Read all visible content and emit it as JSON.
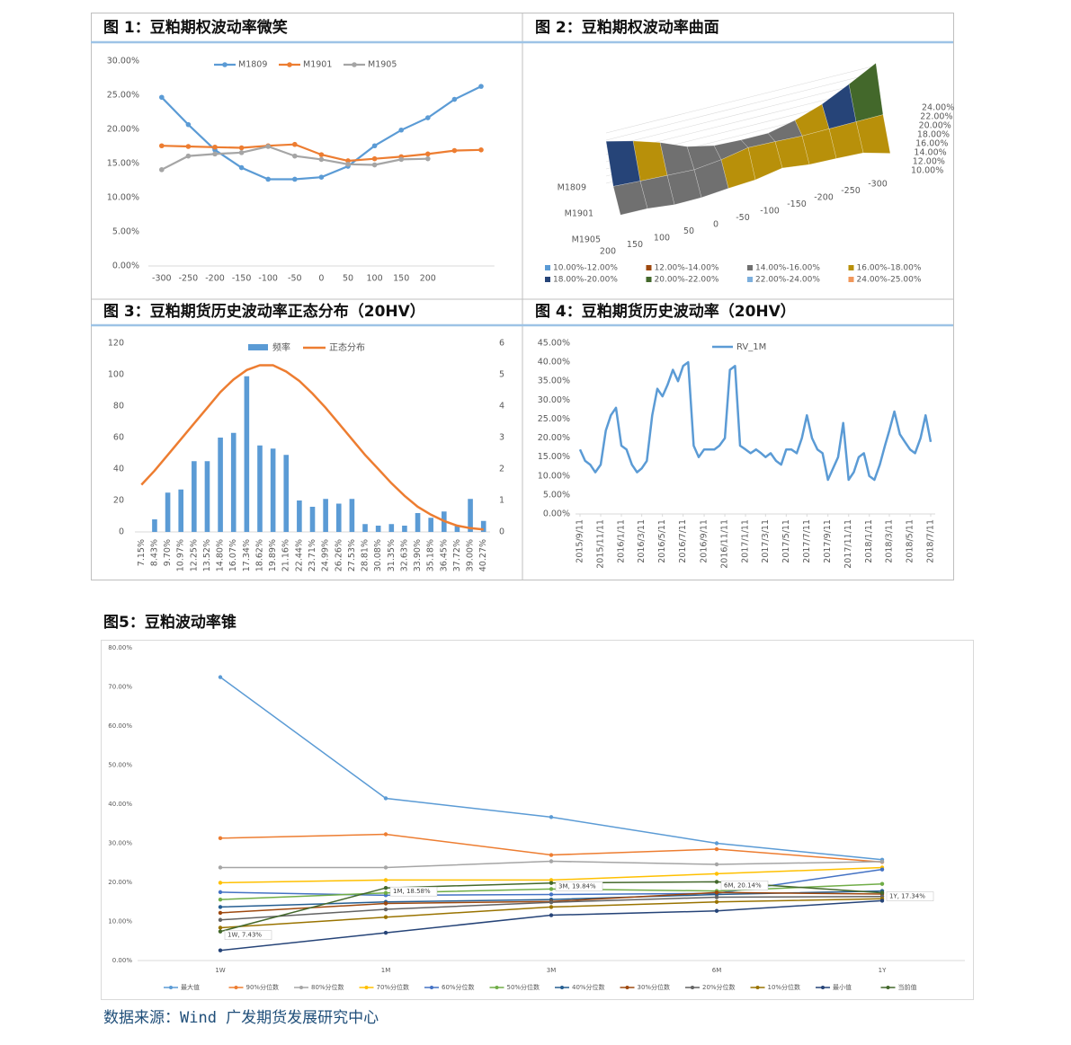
{
  "chart_data": [
    {
      "type": "line",
      "title": "图 1：豆粕期权波动率微笑",
      "categories": [
        -300,
        -250,
        -200,
        -150,
        -100,
        -50,
        0,
        50,
        100,
        150,
        200,
        null,
        null
      ],
      "series": [
        {
          "name": "M1809",
          "color": "#5b9bd5",
          "values": [
            24.7,
            20.7,
            17.0,
            14.4,
            12.7,
            12.7,
            13.0,
            14.6,
            17.6,
            19.9,
            21.7,
            24.4,
            26.3
          ]
        },
        {
          "name": "M1901",
          "color": "#ed7d31",
          "values": [
            17.6,
            17.5,
            17.4,
            17.3,
            17.6,
            17.8,
            16.3,
            15.4,
            15.7,
            16.0,
            16.4,
            16.9,
            17.0
          ]
        },
        {
          "name": "M1905",
          "color": "#a5a5a5",
          "values": [
            14.1,
            16.1,
            16.4,
            16.6,
            17.5,
            16.1,
            15.6,
            14.9,
            14.8,
            15.6,
            15.7,
            null,
            null
          ]
        }
      ],
      "ylim": [
        0,
        30
      ],
      "yticks": [
        {
          "value": 0,
          "label": "0.00%"
        },
        {
          "value": 5,
          "label": "5.00%"
        },
        {
          "value": 10,
          "label": "10.00%"
        },
        {
          "value": 15,
          "label": "15.00%"
        },
        {
          "value": 20,
          "label": "20.00%"
        },
        {
          "value": 25,
          "label": "25.00%"
        },
        {
          "value": 30,
          "label": "30.00%"
        }
      ],
      "legend": "top"
    },
    {
      "type": "surface",
      "title": "图 2：豆粕期权波动率曲面",
      "categories": [
        -300,
        -250,
        -200,
        -150,
        -100,
        -50,
        0,
        50,
        100,
        150,
        200
      ],
      "series": [
        {
          "name": "M1809",
          "values": [
            24.7,
            20.7,
            17.0,
            14.4,
            12.7,
            12.7,
            13.0,
            14.6,
            17.6,
            19.9,
            21.7
          ]
        },
        {
          "name": "M1901",
          "values": [
            17.6,
            17.5,
            17.4,
            17.3,
            17.6,
            17.8,
            16.3,
            15.4,
            15.7,
            16.0,
            16.4
          ]
        },
        {
          "name": "M1905",
          "values": [
            14.1,
            16.1,
            16.4,
            16.6,
            17.5,
            16.1,
            15.6,
            14.9,
            14.8,
            15.6,
            15.7
          ]
        }
      ],
      "zlim": [
        10,
        25
      ],
      "zticks": [
        {
          "value": 10,
          "label": "10.00%"
        },
        {
          "value": 12,
          "label": "12.00%"
        },
        {
          "value": 14,
          "label": "14.00%"
        },
        {
          "value": 16,
          "label": "16.00%"
        },
        {
          "value": 18,
          "label": "18.00%"
        },
        {
          "value": 20,
          "label": "20.00%"
        },
        {
          "value": 22,
          "label": "22.00%"
        },
        {
          "value": 24,
          "label": "24.00%"
        }
      ],
      "bands": [
        {
          "name": "10.00%-12.00%",
          "color": "#5b9bd5"
        },
        {
          "name": "12.00%-14.00%",
          "color": "#9e480e"
        },
        {
          "name": "14.00%-16.00%",
          "color": "#707070"
        },
        {
          "name": "16.00%-18.00%",
          "color": "#b8900a"
        },
        {
          "name": "18.00%-20.00%",
          "color": "#264478"
        },
        {
          "name": "20.00%-22.00%",
          "color": "#43682b"
        },
        {
          "name": "22.00%-24.00%",
          "color": "#7cafdd"
        },
        {
          "name": "24.00%-25.00%",
          "color": "#f1975a"
        }
      ],
      "legend": "bottom"
    },
    {
      "type": "bar_line",
      "title": "图 3：豆粕期货历史波动率正态分布（20HV）",
      "categories": [
        "7.15%",
        "8.43%",
        "9.70%",
        "10.97%",
        "12.25%",
        "13.52%",
        "14.80%",
        "16.07%",
        "17.34%",
        "18.62%",
        "19.89%",
        "21.16%",
        "22.44%",
        "23.71%",
        "24.99%",
        "26.26%",
        "27.53%",
        "28.81%",
        "30.08%",
        "31.35%",
        "32.63%",
        "33.90%",
        "35.18%",
        "36.45%",
        "37.72%",
        "39.00%",
        "40.27%"
      ],
      "series": [
        {
          "name": "频率",
          "type": "bar",
          "color": "#5b9bd5",
          "values": [
            0,
            8,
            25,
            27,
            45,
            45,
            60,
            63,
            99,
            55,
            53,
            49,
            20,
            16,
            21,
            18,
            21,
            5,
            4,
            5,
            4,
            12,
            9,
            13,
            4,
            21,
            7
          ]
        },
        {
          "name": "正态分布",
          "type": "line",
          "axis": "y2",
          "color": "#ed7d31",
          "values": [
            1.5,
            1.95,
            2.45,
            2.95,
            3.45,
            3.95,
            4.45,
            4.85,
            5.15,
            5.3,
            5.3,
            5.1,
            4.8,
            4.4,
            3.95,
            3.45,
            2.95,
            2.45,
            2.0,
            1.55,
            1.15,
            0.8,
            0.55,
            0.35,
            0.2,
            0.12,
            0.08
          ]
        }
      ],
      "ylim": [
        0,
        120
      ],
      "yticks": [
        0,
        20,
        40,
        60,
        80,
        100,
        120
      ],
      "y2lim": [
        0,
        6
      ],
      "y2ticks": [
        0,
        1,
        2,
        3,
        4,
        5,
        6
      ],
      "legend": "top"
    },
    {
      "type": "timeseries",
      "title": "图 4：豆粕期货历史波动率（20HV）",
      "x": [
        "2015/9/11",
        "2015/9/26",
        "2015/10/11",
        "2015/10/26",
        "2015/11/11",
        "2015/11/26",
        "2015/12/11",
        "2015/12/26",
        "2016/1/11",
        "2016/1/26",
        "2016/2/11",
        "2016/2/26",
        "2016/3/11",
        "2016/3/26",
        "2016/4/11",
        "2016/4/26",
        "2016/5/11",
        "2016/5/26",
        "2016/6/11",
        "2016/6/26",
        "2016/7/11",
        "2016/7/26",
        "2016/8/11",
        "2016/8/26",
        "2016/9/11",
        "2016/9/26",
        "2016/10/11",
        "2016/10/26",
        "2016/11/11",
        "2016/11/26",
        "2016/12/11",
        "2016/12/26",
        "2017/1/11",
        "2017/1/26",
        "2017/2/11",
        "2017/2/26",
        "2017/3/11",
        "2017/3/26",
        "2017/4/11",
        "2017/4/26",
        "2017/5/11",
        "2017/5/26",
        "2017/6/11",
        "2017/6/26",
        "2017/7/11",
        "2017/7/26",
        "2017/8/11",
        "2017/8/26",
        "2017/9/11",
        "2017/9/26",
        "2017/10/11",
        "2017/10/26",
        "2017/11/11",
        "2017/11/26",
        "2017/12/11",
        "2017/12/26",
        "2018/1/11",
        "2018/1/26",
        "2018/2/11",
        "2018/2/26",
        "2018/3/11",
        "2018/3/26",
        "2018/4/11",
        "2018/4/26",
        "2018/5/11",
        "2018/5/26",
        "2018/6/11",
        "2018/6/26",
        "2018/7/11"
      ],
      "series": [
        {
          "name": "RV_1M",
          "color": "#5b9bd5",
          "values": [
            17,
            14,
            13,
            11,
            13,
            22,
            26,
            28,
            18,
            17,
            13,
            11,
            12,
            14,
            26,
            33,
            31,
            34,
            38,
            35,
            39,
            40,
            18,
            15,
            17,
            17,
            17,
            18,
            20,
            38,
            39,
            18,
            17,
            16,
            17,
            16,
            15,
            16,
            14,
            13,
            17,
            17,
            16,
            20,
            26,
            20,
            17,
            16,
            9,
            12,
            15,
            24,
            9,
            11,
            15,
            16,
            10,
            9,
            13,
            18,
            22,
            27,
            21,
            19,
            17,
            16,
            20,
            26,
            19
          ]
        }
      ],
      "xticks": [
        "2015/9/11",
        "2015/11/11",
        "2016/1/11",
        "2016/3/11",
        "2016/5/11",
        "2016/7/11",
        "2016/9/11",
        "2016/11/11",
        "2017/1/11",
        "2017/3/11",
        "2017/5/11",
        "2017/7/11",
        "2017/9/11",
        "2017/11/11",
        "2018/1/11",
        "2018/3/11",
        "2018/5/11",
        "2018/7/11"
      ],
      "ylim": [
        0,
        45
      ],
      "yticks": [
        {
          "value": 0,
          "label": "0.00%"
        },
        {
          "value": 5,
          "label": "5.00%"
        },
        {
          "value": 10,
          "label": "10.00%"
        },
        {
          "value": 15,
          "label": "15.00%"
        },
        {
          "value": 20,
          "label": "20.00%"
        },
        {
          "value": 25,
          "label": "25.00%"
        },
        {
          "value": 30,
          "label": "30.00%"
        },
        {
          "value": 35,
          "label": "35.00%"
        },
        {
          "value": 40,
          "label": "40.00%"
        },
        {
          "value": 45,
          "label": "45.00%"
        }
      ],
      "legend": "top"
    },
    {
      "type": "line",
      "title": "图5：豆粕波动率锥",
      "categories": [
        "1W",
        "1M",
        "3M",
        "6M",
        "1Y"
      ],
      "series": [
        {
          "name": "最大值",
          "color": "#5b9bd5",
          "values": [
            72.5,
            41.5,
            36.7,
            30.0,
            25.8
          ]
        },
        {
          "name": "90%分位数",
          "color": "#ed7d31",
          "values": [
            31.3,
            32.3,
            27.0,
            28.5,
            25.2
          ]
        },
        {
          "name": "80%分位数",
          "color": "#a5a5a5",
          "values": [
            23.8,
            23.8,
            25.4,
            24.6,
            25.3
          ]
        },
        {
          "name": "70%分位数",
          "color": "#ffc000",
          "values": [
            19.9,
            20.6,
            20.6,
            22.2,
            23.8
          ]
        },
        {
          "name": "60%分位数",
          "color": "#4472c4",
          "values": [
            17.5,
            16.7,
            16.9,
            17.2,
            23.3
          ]
        },
        {
          "name": "50%分位数",
          "color": "#70ad47",
          "values": [
            15.6,
            17.3,
            18.3,
            17.8,
            19.6
          ]
        },
        {
          "name": "40%分位数",
          "color": "#255e91",
          "values": [
            13.7,
            15.0,
            15.6,
            16.9,
            17.8
          ]
        },
        {
          "name": "30%分位数",
          "color": "#9e480e",
          "values": [
            12.2,
            14.6,
            15.1,
            17.4,
            17.0
          ]
        },
        {
          "name": "20%分位数",
          "color": "#636363",
          "values": [
            10.4,
            13.1,
            14.9,
            16.2,
            16.4
          ]
        },
        {
          "name": "10%分位数",
          "color": "#997300",
          "values": [
            8.4,
            11.1,
            13.7,
            15.0,
            15.8
          ]
        },
        {
          "name": "最小值",
          "color": "#264478",
          "values": [
            2.6,
            7.1,
            11.6,
            12.7,
            15.3
          ]
        },
        {
          "name": "当前值",
          "color": "#43682b",
          "values": [
            7.43,
            18.58,
            19.84,
            20.14,
            17.34
          ],
          "value_labels": [
            "1W, 7.43%",
            "1M, 18.58%",
            "3M, 19.84%",
            "6M, 20.14%",
            "1Y, 17.34%"
          ]
        }
      ],
      "ylim": [
        0,
        80
      ],
      "yticks": [
        {
          "value": 0,
          "label": "0.00%"
        },
        {
          "value": 10,
          "label": "10.00%"
        },
        {
          "value": 20,
          "label": "20.00%"
        },
        {
          "value": 30,
          "label": "30.00%"
        },
        {
          "value": 40,
          "label": "40.00%"
        },
        {
          "value": 50,
          "label": "50.00%"
        },
        {
          "value": 60,
          "label": "60.00%"
        },
        {
          "value": 70,
          "label": "70.00%"
        },
        {
          "value": 80,
          "label": "80.00%"
        }
      ],
      "legend": "bottom"
    }
  ],
  "source": "数据来源：Wind 广发期货发展研究中心"
}
